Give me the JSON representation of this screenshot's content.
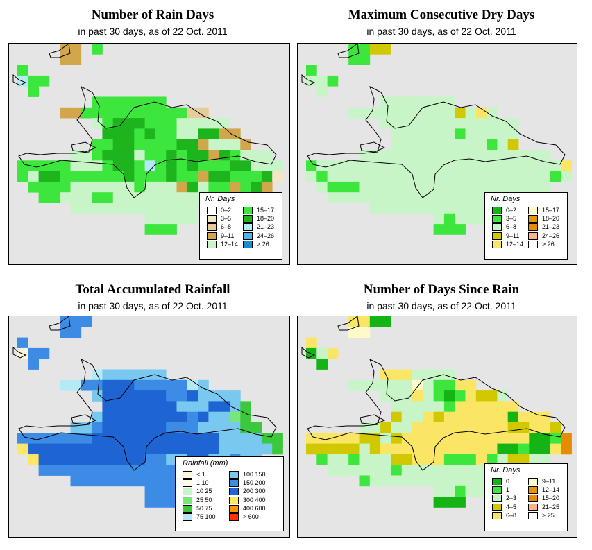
{
  "panels": [
    {
      "id": "rain_days",
      "title": "Number of Rain Days",
      "subtitle": "in past 30 days, as of  22 Oct. 2011",
      "legend": {
        "title": "Nr. Days",
        "items": [
          {
            "label": "0–2",
            "color": "#ffffff"
          },
          {
            "label": "3–5",
            "color": "#f5e6c8"
          },
          {
            "label": "6–8",
            "color": "#e6cc99"
          },
          {
            "label": "9–11",
            "color": "#d2a64a"
          },
          {
            "label": "12–14",
            "color": "#c8f5c8"
          },
          {
            "label": "15–17",
            "color": "#3ce63c"
          },
          {
            "label": "18–20",
            "color": "#1eb41e"
          },
          {
            "label": "21–23",
            "color": "#b4eaf5"
          },
          {
            "label": "24–26",
            "color": "#50b4e6"
          },
          {
            "label": "> 26",
            "color": "#1e8cc8"
          }
        ]
      }
    },
    {
      "id": "dry_days",
      "title": "Maximum Consecutive Dry Days",
      "subtitle": "in past 30 days, as of  22 Oct. 2011",
      "legend": {
        "title": "Nr. Days",
        "items": [
          {
            "label": "0–2",
            "color": "#14b414"
          },
          {
            "label": "3–5",
            "color": "#3ce63c"
          },
          {
            "label": "6–8",
            "color": "#c8f5c8"
          },
          {
            "label": "9–11",
            "color": "#d2c800"
          },
          {
            "label": "12–14",
            "color": "#fae664"
          },
          {
            "label": "15–17",
            "color": "#fffac8"
          },
          {
            "label": "18–20",
            "color": "#e69600"
          },
          {
            "label": "21–23",
            "color": "#e68c00"
          },
          {
            "label": "24–26",
            "color": "#fab48c"
          },
          {
            "label": "> 26",
            "color": "#ffffff"
          }
        ]
      }
    },
    {
      "id": "rainfall",
      "title": "Total Accumulated Rainfall",
      "subtitle": "in past 30 days, as of  22 Oct. 2011",
      "legend": {
        "title": "Rainfall (mm)",
        "items": [
          {
            "label": "< 1",
            "color": "#fff5dc"
          },
          {
            "label": "1    10",
            "color": "#fffae6"
          },
          {
            "label": "10    25",
            "color": "#c8f5c8"
          },
          {
            "label": "25    50",
            "color": "#78e678"
          },
          {
            "label": "50    75",
            "color": "#3cc83c"
          },
          {
            "label": "75   100",
            "color": "#b4eaf5"
          },
          {
            "label": "100   150",
            "color": "#78c8f0"
          },
          {
            "label": "150   200",
            "color": "#3c8ce6"
          },
          {
            "label": "200   300",
            "color": "#1e64d2"
          },
          {
            "label": "300   400",
            "color": "#ffe664"
          },
          {
            "label": "400   600",
            "color": "#ff9600"
          },
          {
            "label": "> 600",
            "color": "#ff3200"
          }
        ]
      }
    },
    {
      "id": "since_rain",
      "title": "Number of Days Since Rain",
      "subtitle": "in past 30 days, as of  22 Oct. 2011",
      "legend": {
        "title": "Nr. Days",
        "items": [
          {
            "label": "0",
            "color": "#14b414"
          },
          {
            "label": "1",
            "color": "#3ce63c"
          },
          {
            "label": "2–3",
            "color": "#c8f5c8"
          },
          {
            "label": "4–5",
            "color": "#d2c800"
          },
          {
            "label": "6–8",
            "color": "#fae664"
          },
          {
            "label": "9–11",
            "color": "#fffac8"
          },
          {
            "label": "12–14",
            "color": "#e69600"
          },
          {
            "label": "15–20",
            "color": "#e68c00"
          },
          {
            "label": "21–25",
            "color": "#fab48c"
          },
          {
            "label": "> 25",
            "color": "#ffffff"
          }
        ]
      }
    }
  ],
  "grids": {
    "rain_days": {
      "palette": {
        "g": "#3ce63c",
        "d": "#1eb41e",
        "l": "#c8f5c8",
        "t": "#d2a64a",
        "b": "#e6cc99",
        "c": "#f5e6c8",
        "s": "#b4eaf5",
        "w": "#ffffff",
        "_": ""
      },
      "rows": [
        "____tt_g_________________",
        "____tt___________________",
        "g________________________",
        "sgg______________________",
        "_g_______________________",
        "_______ggggggg___________",
        "____ttggggggggggbb_______",
        "_______lgdddggglllll_____",
        "________dddgdggllddtt____",
        "_______ggddggggddtlllt___",
        "_____llgdddlggdgddtdglll_",
        "ggggglllgddgsgdgdgggddlll",
        "glddggggggdgggdggtddgggdc",
        "_ggggllllllgllltdlggtgdt_",
        "__gglllggllllllllllll_gt_",
        "_____llllllllllll________",
        "____________lllll________",
        "____________ggg__________"
      ]
    },
    "dry_days": {
      "palette": {
        "g": "#3ce63c",
        "d": "#14b414",
        "l": "#c8f5c8",
        "y": "#d2c800",
        "p": "#fae664",
        "c": "#fffac8",
        "_": ""
      },
      "rows": [
        "____ggyy_________________",
        "____gg___________________",
        "g________________________",
        "llg______________________",
        "_l_______________________",
        "_______lllllll___________",
        "____llllllllllylpl_______",
        "_______lllllllllllll_____",
        "________llllllglllll_____",
        "________lllllllllgly_____",
        "_____llllllllllllllllll__",
        "glllllllllllllllllllllllp",
        "lglllllllllllllllllllllgl",
        "_lgggllllllllllllllllll__",
        "__lllllllllllllllll______",
        "______llllllllllll_______",
        "____________lglll________",
        "____________ggg__________"
      ]
    },
    "rainfall": {
      "palette": {
        "n": "#1e64d2",
        "m": "#3c8ce6",
        "k": "#78c8f0",
        "s": "#b4eaf5",
        "g": "#3cc83c",
        "h": "#78e678",
        "y": "#ffe664",
        "c": "#fff5dc",
        "_": ""
      },
      "rows": [
        "____mmm__________________",
        "____mm___________________",
        "m________________________",
        "cmm______________________",
        "_m_______________________",
        "_______skkkkkk___________",
        "____ssmmnnnmmmmmsk_______",
        "_______knnnnnnmmnkkkk____",
        "________nnnnnnnkkknnkg___",
        "_______knnnnnnnnmnkkhg___",
        "_____kkmnnnnnnmmmkkkkgg__",
        "mmmmmmmnnnnnnnnnnnnkkkkgg",
        "ynnnnnnnnnnnnnnnnnnkkkkkg",
        "_ynnnnnnnnnnmmkknnkkmkk__",
        "__mmmmmmmmmmmmmmkkkk_____",
        "_____mmmmmmmmmmm_________",
        "____________mmmmm________",
        "____________mmm__________"
      ]
    },
    "since_rain": {
      "palette": {
        "d": "#14b414",
        "g": "#3ce63c",
        "l": "#c8f5c8",
        "y": "#d2c800",
        "p": "#fae664",
        "c": "#fffac8",
        "o": "#e68c00",
        "_": ""
      },
      "rows": [
        "____ppdd_________________",
        "____cc___________________",
        "p________________________",
        "dlp______________________",
        "_d_______________________",
        "_______pppllll___________",
        "____llllllclggpp_________",
        "_______lllplgdgpyyl______",
        "________lllllgpppppp_____",
        "________yllpyppppppdppp__",
        "_____llyllpppppppppyyppy_",
        "pppppyylyppppppppppppddgo",
        "yyyyylypppppppppppddgddpo",
        "_gllglllyypppgggpglyyll__",
        "__llllllgllllllllllll____",
        "_____gllllllllllll_______",
        "____________llgll________",
        "____________ddd__________"
      ]
    }
  }
}
